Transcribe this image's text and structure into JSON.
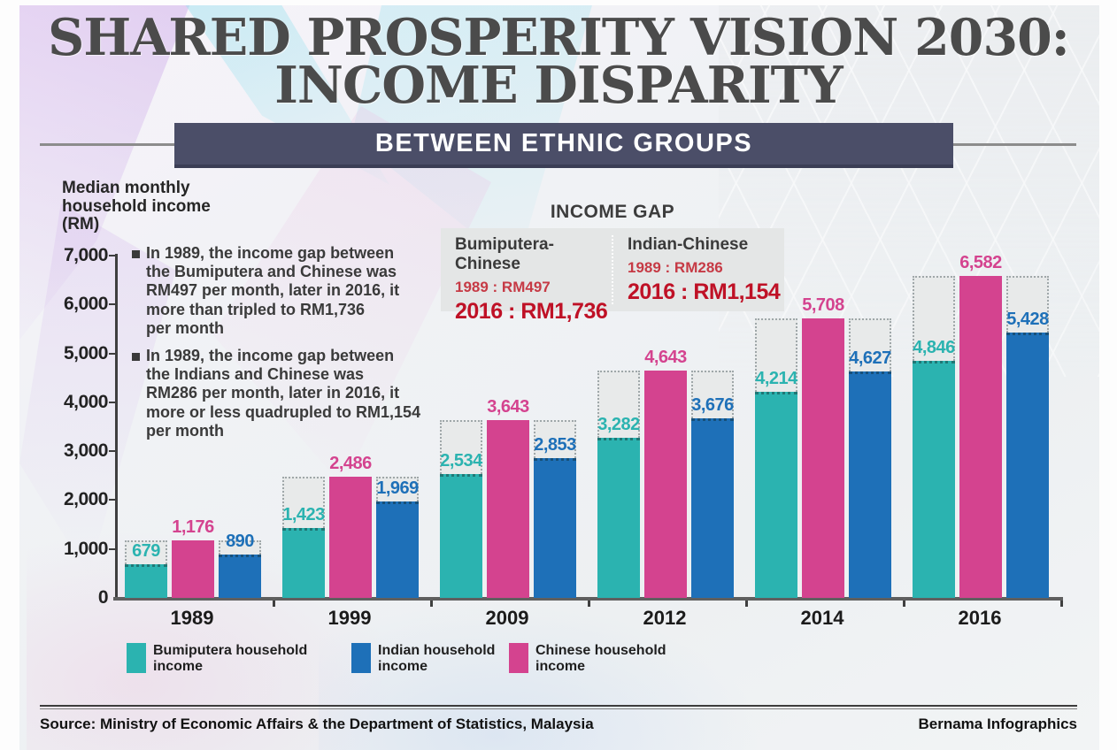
{
  "header": {
    "title_line1": "SHARED PROSPERITY VISION 2030:",
    "title_line2": "INCOME DISPARITY",
    "banner": "BETWEEN ETHNIC GROUPS"
  },
  "y_axis_title": "Median monthly\nhousehold income\n(RM)",
  "notes": [
    {
      "text": "In 1989, the income gap between\nthe Bumiputera and Chinese was\nRM497 per month, later in 2016, it\nmore than tripled to RM1,736\nper month"
    },
    {
      "text": "In 1989, the income gap between\nthe Indians and Chinese was\nRM286 per month, later in 2016, it\nmore or less quadrupled to RM1,154\nper month"
    }
  ],
  "income_gap": {
    "title": "INCOME GAP",
    "columns": [
      {
        "label": "Bumiputera-Chinese",
        "line_1989": "1989 : RM497",
        "line_2016": "2016 : RM1,736"
      },
      {
        "label": "Indian-Chinese",
        "line_1989": "1989 : RM286",
        "line_2016": "2016 : RM1,154"
      }
    ]
  },
  "chart_data": {
    "type": "bar",
    "title": "BETWEEN ETHNIC GROUPS",
    "categories": [
      "1989",
      "1999",
      "2009",
      "2012",
      "2014",
      "2016"
    ],
    "series": [
      {
        "name": "Bumiputera household income",
        "color": "#2bb3b0",
        "values": [
          679,
          1423,
          2534,
          3282,
          4214,
          4846
        ]
      },
      {
        "name": "Chinese household income",
        "color": "#d4438f",
        "values": [
          1176,
          2486,
          3643,
          4643,
          5708,
          6582
        ]
      },
      {
        "name": "Indian household income",
        "color": "#1e70b8",
        "values": [
          890,
          1969,
          2853,
          3676,
          4627,
          5428
        ]
      }
    ],
    "ylabel": "Median monthly household income (RM)",
    "ylim": [
      0,
      7000
    ],
    "yticks": [
      0,
      1000,
      2000,
      3000,
      4000,
      5000,
      6000,
      7000
    ],
    "grid": false,
    "legend_position": "bottom",
    "ghost_note": "light grey dotted ghost columns behind Bumiputera and Indian bars mark the Chinese bar height of each group"
  },
  "legend": {
    "items": [
      {
        "label": "Bumiputera household\nincome",
        "color": "#2bb3b0"
      },
      {
        "label": "Indian household\nincome",
        "color": "#1e70b8"
      },
      {
        "label": "Chinese household\nincome",
        "color": "#d4438f"
      }
    ]
  },
  "footer": {
    "source": "Source: Ministry of Economic Affairs & the Department of Statistics, Malaysia",
    "credit": "Bernama Infographics"
  },
  "colors": {
    "bumiputera_teal": "#2bb3b0",
    "chinese_magenta": "#d4438f",
    "indian_blue": "#1e70b8",
    "ghost_grey": "#e8eaea",
    "banner_navy": "#4b4e68",
    "red_1989": "#c63a45",
    "red_2016": "#bf1126",
    "title_grey": "#4b4b4b"
  }
}
